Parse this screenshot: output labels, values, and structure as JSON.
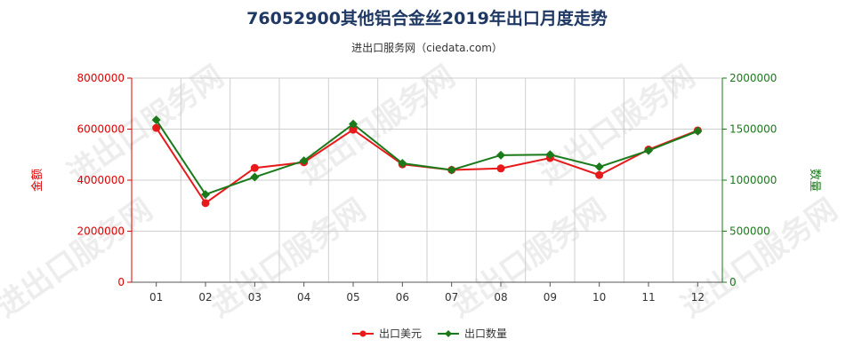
{
  "chart_data": {
    "type": "line",
    "title": "76052900其他铝合金丝2019年出口月度走势",
    "subtitle": "进出口服务网（ciedata.com）",
    "categories": [
      "01",
      "02",
      "03",
      "04",
      "05",
      "06",
      "07",
      "08",
      "09",
      "10",
      "11",
      "12"
    ],
    "y_left": {
      "label": "金额",
      "range": [
        0,
        8000000
      ],
      "ticks": [
        "0",
        "2000000",
        "4000000",
        "6000000",
        "8000000"
      ],
      "color": "#e00000"
    },
    "y_right": {
      "label": "数量",
      "range": [
        0,
        2000000
      ],
      "ticks": [
        "0",
        "500000",
        "1000000",
        "1500000",
        "2000000"
      ],
      "color": "#1a7a1a"
    },
    "series": [
      {
        "name": "出口美元",
        "axis": "left",
        "color": "#e8191b",
        "values": [
          6050000,
          3100000,
          4480000,
          4700000,
          5980000,
          4620000,
          4400000,
          4460000,
          4870000,
          4200000,
          5200000,
          5950000
        ]
      },
      {
        "name": "出口数量",
        "axis": "right",
        "color": "#1a7a1a",
        "values": [
          1590000,
          860000,
          1030000,
          1190000,
          1550000,
          1165000,
          1100000,
          1245000,
          1250000,
          1130000,
          1290000,
          1480000
        ]
      }
    ],
    "grid": true,
    "legend_position": "bottom-center",
    "watermark": "进出口服务网"
  }
}
